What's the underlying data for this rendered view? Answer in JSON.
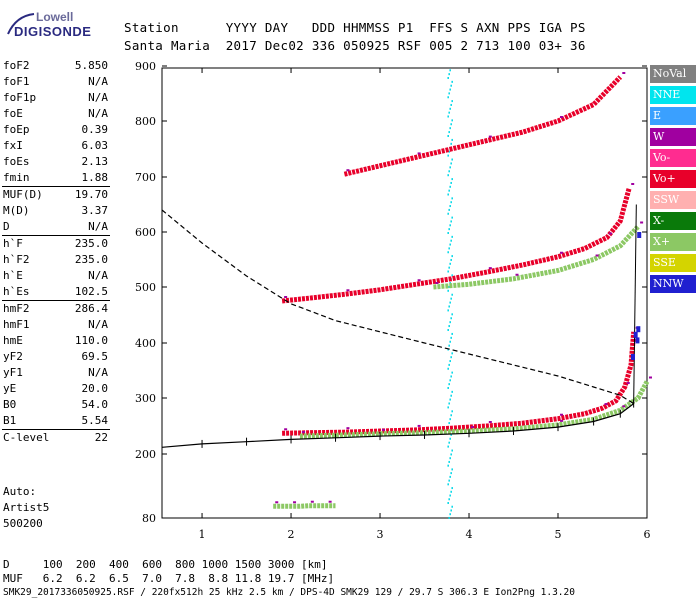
{
  "logo": {
    "line1": "Lowell",
    "line2": "DIGISONDE"
  },
  "header": {
    "row1": "Station      YYYY DAY   DDD HHMMSS P1  FFS S AXN PPS IGA PS",
    "row2": "Santa Maria  2017 Dec02 336 050925 RSF 005 2 713 100 03+ 36"
  },
  "params": [
    {
      "group": [
        {
          "k": "foF2",
          "v": "5.850"
        },
        {
          "k": "foF1",
          "v": "N/A"
        },
        {
          "k": "foF1p",
          "v": "N/A"
        },
        {
          "k": "foE",
          "v": "N/A"
        },
        {
          "k": "foEp",
          "v": "0.39"
        },
        {
          "k": "fxI",
          "v": "6.03"
        },
        {
          "k": "foEs",
          "v": "2.13"
        },
        {
          "k": "fmin",
          "v": "1.88"
        }
      ]
    },
    {
      "group": [
        {
          "k": "MUF(D)",
          "v": "19.70"
        },
        {
          "k": "M(D)",
          "v": "3.37"
        },
        {
          "k": "D",
          "v": "N/A"
        }
      ]
    },
    {
      "group": [
        {
          "k": "h`F",
          "v": "235.0"
        },
        {
          "k": "h`F2",
          "v": "235.0"
        },
        {
          "k": "h`E",
          "v": "N/A"
        },
        {
          "k": "h`Es",
          "v": "102.5"
        }
      ]
    },
    {
      "group": [
        {
          "k": "hmF2",
          "v": "286.4"
        },
        {
          "k": "hmF1",
          "v": "N/A"
        },
        {
          "k": "hmE",
          "v": "110.0"
        },
        {
          "k": "yF2",
          "v": "69.5"
        },
        {
          "k": "yF1",
          "v": "N/A"
        },
        {
          "k": "yE",
          "v": "20.0"
        },
        {
          "k": "B0",
          "v": "54.0"
        },
        {
          "k": "B1",
          "v": "5.54"
        }
      ]
    },
    {
      "group": [
        {
          "k": "C-level",
          "v": "22"
        }
      ]
    }
  ],
  "auto": {
    "l1": "Auto:",
    "l2": "Artist5",
    "l3": "500200"
  },
  "legend": [
    {
      "label": "NoVal",
      "color": "#808080"
    },
    {
      "label": "NNE",
      "color": "#00e5ee"
    },
    {
      "label": "E",
      "color": "#3aa0ff"
    },
    {
      "label": "W",
      "color": "#a000a0"
    },
    {
      "label": "Vo-",
      "color": "#ff2c90"
    },
    {
      "label": "Vo+",
      "color": "#e8002a"
    },
    {
      "label": "SSW",
      "color": "#ffb0b0"
    },
    {
      "label": "X-",
      "color": "#0a7a0a"
    },
    {
      "label": "X+",
      "color": "#8cc864"
    },
    {
      "label": "SSE",
      "color": "#d4d400"
    },
    {
      "label": "NNW",
      "color": "#2020d0"
    }
  ],
  "footer": {
    "l1": "D     100  200  400  600  800 1000 1500 3000 [km]",
    "l2": "MUF   6.2  6.2  6.5  7.0  7.8  8.8 11.8 19.7 [MHz]",
    "l3": "SMK29_2017336050925.RSF / 220fx512h 25 kHz 2.5 km / DPS-4D SMK29 129 / 29.7 S 306.3 E Ion2Png 1.3.20"
  },
  "chart_data": {
    "type": "scatter",
    "xlim": [
      0.55,
      6.0
    ],
    "ylim": [
      80,
      900
    ],
    "y_scale": "log-like (ionogram virtual height)",
    "x_ticks": [
      1,
      2,
      3,
      4,
      5,
      6
    ],
    "y_ticks": [
      80,
      200,
      300,
      400,
      500,
      600,
      700,
      800,
      900
    ],
    "grid": false,
    "traces": [
      {
        "name": "F2 o-trace 1st hop",
        "color": "#e8002a",
        "x": [
          1.9,
          2.2,
          2.6,
          3.0,
          3.4,
          3.8,
          4.2,
          4.6,
          5.0,
          5.3,
          5.5,
          5.65,
          5.75,
          5.82,
          5.85
        ],
        "y": [
          237,
          238,
          239,
          241,
          243,
          246,
          250,
          255,
          263,
          272,
          282,
          295,
          320,
          360,
          420
        ]
      },
      {
        "name": "F2 x-trace 1st hop",
        "color": "#8cc864",
        "x": [
          2.1,
          2.6,
          3.0,
          3.5,
          4.0,
          4.5,
          5.0,
          5.4,
          5.7,
          5.9,
          6.0
        ],
        "y": [
          232,
          234,
          236,
          238,
          241,
          245,
          252,
          262,
          278,
          300,
          330
        ]
      },
      {
        "name": "F2 o-trace 2nd hop",
        "color": "#e8002a",
        "x": [
          1.9,
          2.2,
          2.6,
          3.0,
          3.4,
          3.8,
          4.2,
          4.6,
          5.0,
          5.3,
          5.55,
          5.7,
          5.8
        ],
        "y": [
          475,
          480,
          487,
          495,
          505,
          515,
          527,
          540,
          555,
          570,
          590,
          620,
          680
        ]
      },
      {
        "name": "F2 x-trace 2nd hop",
        "color": "#8cc864",
        "x": [
          3.6,
          4.0,
          4.5,
          5.0,
          5.4,
          5.7,
          5.9
        ],
        "y": [
          500,
          505,
          515,
          530,
          550,
          575,
          610
        ]
      },
      {
        "name": "F2 o-trace 3rd hop",
        "color": "#e8002a",
        "x": [
          2.6,
          3.0,
          3.4,
          3.8,
          4.2,
          4.6,
          5.0,
          5.4,
          5.7
        ],
        "y": [
          705,
          720,
          735,
          750,
          765,
          780,
          800,
          830,
          880
        ]
      },
      {
        "name": "Es trace",
        "color": "#8cc864",
        "x": [
          1.8,
          1.9,
          2.0,
          2.1,
          2.2,
          2.3,
          2.4,
          2.5
        ],
        "y": [
          102,
          102,
          102,
          102,
          103,
          103,
          103,
          103
        ]
      }
    ],
    "profile_fit": {
      "x": [
        0.55,
        1.0,
        1.5,
        2.0,
        2.5,
        3.0,
        3.5,
        4.0,
        4.5,
        5.0,
        5.4,
        5.7,
        5.85
      ],
      "y": [
        212,
        218,
        222,
        226,
        229,
        232,
        234,
        237,
        241,
        248,
        258,
        272,
        290
      ]
    },
    "electron_density_profile": {
      "x": [
        0.55,
        1.0,
        1.5,
        2.0,
        2.5,
        3.0,
        3.5,
        4.0,
        4.5,
        5.0,
        5.4,
        5.7,
        5.85
      ],
      "y": [
        640,
        580,
        520,
        470,
        440,
        420,
        400,
        380,
        360,
        340,
        320,
        305,
        290
      ]
    }
  }
}
